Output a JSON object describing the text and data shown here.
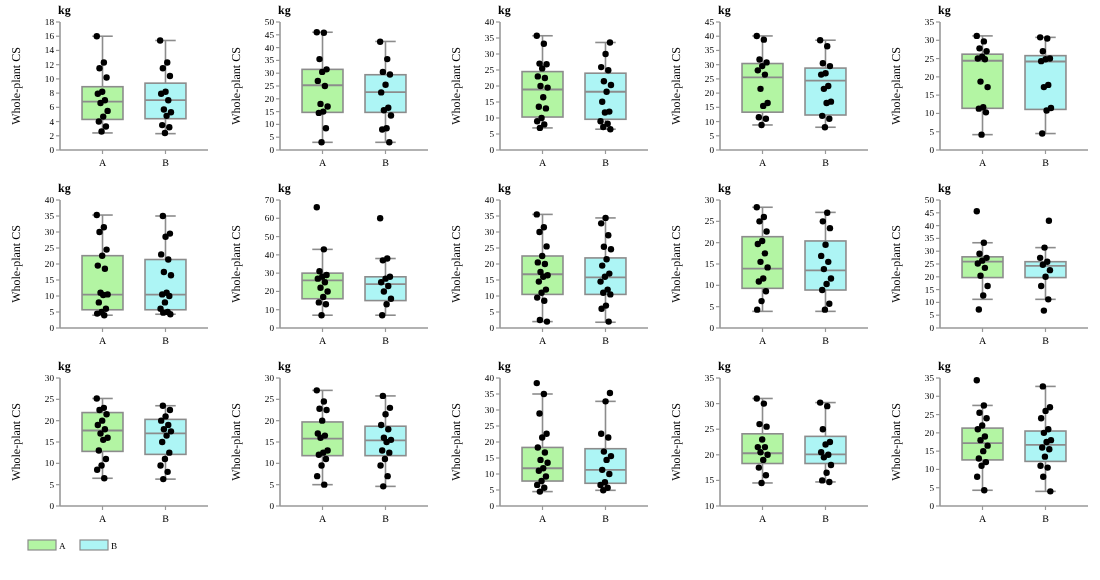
{
  "chart_data": [
    {
      "type": "box",
      "ylabel": "Whole-plant CS",
      "annotations": [
        "kg"
      ],
      "categories": [
        "A",
        "B"
      ],
      "ylim": [
        0,
        18
      ],
      "yticks": [
        0,
        2,
        4,
        6,
        8,
        10,
        12,
        14,
        16,
        18
      ],
      "marker": "circle",
      "series": [
        {
          "type": "box",
          "color": "#b3f5a3",
          "boxes": [
            {
              "low": 2.4,
              "q1": 4.3,
              "median": 6.8,
              "q3": 8.9,
              "high": 16
            },
            null
          ]
        },
        {
          "type": "box",
          "color": "#adf5f5",
          "boxes": [
            null,
            {
              "low": 2.3,
              "q1": 4.4,
              "median": 7,
              "q3": 9.4,
              "high": 15.4
            }
          ]
        },
        {
          "type": "scatter",
          "color": "#000000",
          "x": [
            "A",
            "A",
            "A",
            "A",
            "A",
            "A",
            "A",
            "A",
            "A",
            "A",
            "A",
            "A",
            "A",
            "B",
            "B",
            "B",
            "B",
            "B",
            "B",
            "B",
            "B",
            "B",
            "B",
            "B",
            "B",
            "B"
          ],
          "values": [
            16,
            12.3,
            11.5,
            10.2,
            8.2,
            7.9,
            7,
            6.6,
            5.5,
            4.7,
            4,
            3.3,
            2.6,
            15.4,
            12.3,
            11.5,
            10.4,
            8.2,
            7.9,
            7,
            5.7,
            5.3,
            4.8,
            3.5,
            3.2,
            2.4
          ]
        }
      ]
    },
    {
      "type": "box",
      "ylabel": "Whole-plant CS",
      "annotations": [
        "kg"
      ],
      "categories": [
        "A",
        "B"
      ],
      "ylim": [
        0,
        50
      ],
      "yticks": [
        0,
        5,
        10,
        15,
        20,
        25,
        30,
        35,
        40,
        45,
        50
      ],
      "marker": "circle",
      "series": [
        {
          "type": "box",
          "color": "#b3f5a3",
          "boxes": [
            {
              "low": 3,
              "q1": 14.7,
              "median": 25.3,
              "q3": 31.5,
              "high": 46
            },
            null
          ]
        },
        {
          "type": "box",
          "color": "#adf5f5",
          "boxes": [
            null,
            {
              "low": 3,
              "q1": 14.7,
              "median": 22.6,
              "q3": 29.4,
              "high": 42.4
            }
          ]
        },
        {
          "type": "scatter",
          "color": "#000000",
          "x": [
            "A",
            "A",
            "A",
            "A",
            "A",
            "A",
            "A",
            "A",
            "A",
            "A",
            "A",
            "A",
            "A",
            "B",
            "B",
            "B",
            "B",
            "B",
            "B",
            "B",
            "B",
            "B",
            "B",
            "B",
            "B"
          ],
          "values": [
            46,
            45.8,
            35.5,
            31.5,
            30.5,
            27,
            25,
            18,
            17,
            15,
            14.5,
            8.5,
            3,
            42.3,
            35.5,
            30.5,
            29.5,
            25.5,
            22.5,
            16.5,
            15.5,
            13.5,
            8.5,
            8,
            3
          ]
        }
      ]
    },
    {
      "type": "box",
      "ylabel": "Whole-plant CS",
      "annotations": [
        "kg"
      ],
      "categories": [
        "A",
        "B"
      ],
      "ylim": [
        0,
        40
      ],
      "yticks": [
        0,
        5,
        10,
        15,
        20,
        25,
        30,
        35,
        40
      ],
      "marker": "circle",
      "series": [
        {
          "type": "box",
          "color": "#b3f5a3",
          "boxes": [
            {
              "low": 6.9,
              "q1": 10.3,
              "median": 18.9,
              "q3": 24.5,
              "high": 35.7
            },
            null
          ]
        },
        {
          "type": "box",
          "color": "#adf5f5",
          "boxes": [
            null,
            {
              "low": 6.5,
              "q1": 9.6,
              "median": 18.2,
              "q3": 24,
              "high": 33.6
            }
          ]
        },
        {
          "type": "scatter",
          "color": "#000000",
          "x": [
            "A",
            "A",
            "A",
            "A",
            "A",
            "A",
            "A",
            "A",
            "A",
            "A",
            "A",
            "A",
            "A",
            "A",
            "A",
            "A",
            "B",
            "B",
            "B",
            "B",
            "B",
            "B",
            "B",
            "B",
            "B",
            "B",
            "B",
            "B",
            "B",
            "B"
          ],
          "values": [
            35.7,
            33.2,
            27,
            26.8,
            25.5,
            23,
            22.5,
            20,
            19.5,
            16.5,
            13.5,
            13,
            10,
            9,
            8,
            6.9,
            33.6,
            30,
            25.9,
            24.9,
            21.5,
            20.3,
            18.2,
            15.1,
            12,
            11.7,
            9,
            8.2,
            7.2,
            6.5
          ]
        }
      ]
    },
    {
      "type": "box",
      "ylabel": "Whole-plant CS",
      "annotations": [
        "kg"
      ],
      "categories": [
        "A",
        "B"
      ],
      "ylim": [
        0,
        45
      ],
      "yticks": [
        0,
        5,
        10,
        15,
        20,
        25,
        30,
        35,
        40,
        45
      ],
      "marker": "circle",
      "series": [
        {
          "type": "box",
          "color": "#b3f5a3",
          "boxes": [
            {
              "low": 8.8,
              "q1": 13.3,
              "median": 25.5,
              "q3": 30.4,
              "high": 40.1
            },
            null
          ]
        },
        {
          "type": "box",
          "color": "#adf5f5",
          "boxes": [
            null,
            {
              "low": 8,
              "q1": 12.3,
              "median": 24.4,
              "q3": 28.8,
              "high": 38.6
            }
          ]
        },
        {
          "type": "scatter",
          "color": "#000000",
          "x": [
            "A",
            "A",
            "A",
            "A",
            "A",
            "A",
            "A",
            "A",
            "A",
            "A",
            "A",
            "A",
            "A",
            "B",
            "B",
            "B",
            "B",
            "B",
            "B",
            "B",
            "B",
            "B",
            "B",
            "B",
            "B",
            "B"
          ],
          "values": [
            40.1,
            38.8,
            31.8,
            30.8,
            29.5,
            28,
            26.5,
            21.5,
            16.5,
            15.5,
            11.5,
            11,
            8.8,
            38.6,
            36.5,
            30.5,
            29.5,
            27,
            26.5,
            22.5,
            21.5,
            17,
            16.5,
            12,
            11,
            8
          ]
        }
      ]
    },
    {
      "type": "box",
      "ylabel": "Whole-plant CS",
      "annotations": [
        "kg"
      ],
      "categories": [
        "A",
        "B"
      ],
      "ylim": [
        0,
        35
      ],
      "yticks": [
        0,
        5,
        10,
        15,
        20,
        25,
        30,
        35
      ],
      "marker": "circle",
      "series": [
        {
          "type": "box",
          "color": "#b3f5a3",
          "boxes": [
            {
              "low": 4.2,
              "q1": 11.4,
              "median": 24.4,
              "q3": 26.2,
              "high": 31.2
            },
            null
          ]
        },
        {
          "type": "box",
          "color": "#adf5f5",
          "boxes": [
            null,
            {
              "low": 4.5,
              "q1": 11.1,
              "median": 24.2,
              "q3": 25.8,
              "high": 30.8
            }
          ]
        },
        {
          "type": "scatter",
          "color": "#000000",
          "x": [
            "A",
            "A",
            "A",
            "A",
            "A",
            "A",
            "A",
            "A",
            "A",
            "A",
            "A",
            "A",
            "A",
            "B",
            "B",
            "B",
            "B",
            "B",
            "B",
            "B",
            "B",
            "B",
            "B",
            "B"
          ],
          "values": [
            31.2,
            29.7,
            27.8,
            27,
            25.5,
            25,
            24.8,
            18.7,
            17.2,
            11.7,
            11.3,
            10.3,
            4.2,
            30.8,
            30.5,
            27,
            25,
            24.8,
            24.3,
            17.8,
            17.2,
            11.5,
            10.8,
            4.5
          ]
        }
      ]
    },
    {
      "type": "box",
      "ylabel": "Whole-plant CS",
      "annotations": [
        "kg"
      ],
      "categories": [
        "A",
        "B"
      ],
      "ylim": [
        0,
        40
      ],
      "yticks": [
        0,
        5,
        10,
        15,
        20,
        25,
        30,
        35,
        40
      ],
      "marker": "circle",
      "series": [
        {
          "type": "box",
          "color": "#b3f5a3",
          "boxes": [
            {
              "low": 4,
              "q1": 5.7,
              "median": 10.4,
              "q3": 22.6,
              "high": 35.3
            },
            null
          ]
        },
        {
          "type": "box",
          "color": "#adf5f5",
          "boxes": [
            null,
            {
              "low": 4.3,
              "q1": 5.7,
              "median": 10.4,
              "q3": 21.4,
              "high": 35
            }
          ]
        },
        {
          "type": "scatter",
          "color": "#000000",
          "x": [
            "A",
            "A",
            "A",
            "A",
            "A",
            "A",
            "A",
            "A",
            "A",
            "A",
            "A",
            "A",
            "A",
            "A",
            "A",
            "B",
            "B",
            "B",
            "B",
            "B",
            "B",
            "B",
            "B",
            "B",
            "B",
            "B",
            "B",
            "B",
            "B",
            "B"
          ],
          "values": [
            35.3,
            31.5,
            30,
            24.5,
            22.6,
            19.5,
            18.5,
            11,
            10.5,
            10.3,
            8,
            6,
            5,
            4.5,
            4,
            35,
            29.5,
            28.5,
            23,
            21.4,
            17.5,
            16.5,
            11,
            10.5,
            10,
            8,
            6,
            5,
            4.8,
            4.3
          ]
        }
      ]
    },
    {
      "type": "box",
      "ylabel": "Whole-plant CS",
      "annotations": [
        "kg"
      ],
      "categories": [
        "A",
        "B"
      ],
      "ylim": [
        0,
        70
      ],
      "yticks": [
        0,
        10,
        20,
        30,
        40,
        50,
        60,
        70
      ],
      "marker": "circle",
      "series": [
        {
          "type": "box",
          "color": "#b3f5a3",
          "boxes": [
            {
              "low": 7,
              "q1": 16,
              "median": 26,
              "q3": 30,
              "high": 43
            },
            null
          ]
        },
        {
          "type": "box",
          "color": "#adf5f5",
          "boxes": [
            null,
            {
              "low": 7,
              "q1": 15,
              "median": 24,
              "q3": 28,
              "high": 38
            }
          ]
        },
        {
          "type": "scatter",
          "color": "#000000",
          "x": [
            "A",
            "A",
            "A",
            "A",
            "A",
            "A",
            "A",
            "A",
            "A",
            "A",
            "A",
            "A",
            "A",
            "B",
            "B",
            "B",
            "B",
            "B",
            "B",
            "B",
            "B",
            "B",
            "B",
            "B"
          ],
          "values": [
            66,
            43,
            31,
            29,
            28,
            27,
            25,
            22,
            20,
            17,
            14,
            13,
            7,
            60,
            38,
            37,
            28,
            27,
            25,
            23,
            20,
            16,
            13,
            7
          ]
        }
      ]
    },
    {
      "type": "box",
      "ylabel": "Whole-plant CS",
      "annotations": [
        "kg"
      ],
      "categories": [
        "A",
        "B"
      ],
      "ylim": [
        0,
        40
      ],
      "yticks": [
        0,
        5,
        10,
        15,
        20,
        25,
        30,
        35,
        40
      ],
      "marker": "circle",
      "series": [
        {
          "type": "box",
          "color": "#b3f5a3",
          "boxes": [
            {
              "low": 2,
              "q1": 10.5,
              "median": 16.8,
              "q3": 22.5,
              "high": 35.5
            },
            null
          ]
        },
        {
          "type": "box",
          "color": "#adf5f5",
          "boxes": [
            null,
            {
              "low": 1.8,
              "q1": 10.5,
              "median": 15.8,
              "q3": 21.9,
              "high": 34.4
            }
          ]
        },
        {
          "type": "scatter",
          "color": "#000000",
          "x": [
            "A",
            "A",
            "A",
            "A",
            "A",
            "A",
            "A",
            "A",
            "A",
            "A",
            "A",
            "A",
            "A",
            "A",
            "A",
            "A",
            "A",
            "B",
            "B",
            "B",
            "B",
            "B",
            "B",
            "B",
            "B",
            "B",
            "B",
            "B",
            "B",
            "B",
            "B",
            "B",
            "B"
          ],
          "values": [
            35.5,
            31.5,
            30,
            25.5,
            22.5,
            20.5,
            20,
            17.5,
            16.5,
            16,
            14.5,
            12,
            11,
            9.5,
            8.5,
            2.5,
            2,
            34.4,
            32.7,
            29,
            25.4,
            24.6,
            21.5,
            19.5,
            17,
            16,
            14.5,
            12,
            11,
            10.5,
            7,
            6,
            2
          ]
        }
      ]
    },
    {
      "type": "box",
      "ylabel": "Whole-plant CS",
      "annotations": [
        "kg"
      ],
      "categories": [
        "A",
        "B"
      ],
      "ylim": [
        0,
        30
      ],
      "yticks": [
        0,
        5,
        10,
        15,
        20,
        25,
        30
      ],
      "marker": "circle",
      "series": [
        {
          "type": "box",
          "color": "#b3f5a3",
          "boxes": [
            {
              "low": 3.9,
              "q1": 9.3,
              "median": 13.9,
              "q3": 21.4,
              "high": 28.3
            },
            null
          ]
        },
        {
          "type": "box",
          "color": "#adf5f5",
          "boxes": [
            null,
            {
              "low": 3.9,
              "q1": 8.9,
              "median": 13.5,
              "q3": 20.4,
              "high": 27.1
            }
          ]
        },
        {
          "type": "scatter",
          "color": "#000000",
          "x": [
            "A",
            "A",
            "A",
            "A",
            "A",
            "A",
            "A",
            "A",
            "A",
            "A",
            "A",
            "A",
            "A",
            "A",
            "B",
            "B",
            "B",
            "B",
            "B",
            "B",
            "B",
            "B",
            "B",
            "B",
            "B",
            "B"
          ],
          "values": [
            28.3,
            26,
            25,
            22.6,
            20.4,
            19.7,
            17.5,
            15.5,
            14.2,
            11.6,
            10.9,
            8.6,
            6.3,
            4.3,
            27,
            25,
            23.4,
            19.5,
            16.9,
            15.5,
            13.8,
            11.6,
            10.3,
            8.9,
            5.7,
            4.3
          ]
        }
      ]
    },
    {
      "type": "box",
      "ylabel": "Whole-plant CS",
      "annotations": [
        "kg"
      ],
      "categories": [
        "A",
        "B"
      ],
      "ylim": [
        0,
        50
      ],
      "yticks": [
        0,
        5,
        10,
        15,
        20,
        25,
        30,
        35,
        40,
        45,
        50
      ],
      "marker": "circle",
      "series": [
        {
          "type": "box",
          "color": "#b3f5a3",
          "boxes": [
            {
              "low": 11.2,
              "q1": 19.7,
              "median": 25.9,
              "q3": 27.8,
              "high": 33.3
            },
            null
          ]
        },
        {
          "type": "box",
          "color": "#adf5f5",
          "boxes": [
            null,
            {
              "low": 11.2,
              "q1": 19.7,
              "median": 24.3,
              "q3": 25.9,
              "high": 31.4
            }
          ]
        },
        {
          "type": "scatter",
          "color": "#000000",
          "x": [
            "A",
            "A",
            "A",
            "A",
            "A",
            "A",
            "A",
            "A",
            "A",
            "A",
            "A",
            "B",
            "B",
            "B",
            "B",
            "B",
            "B",
            "B",
            "B",
            "B",
            "B"
          ],
          "values": [
            45.6,
            33.3,
            29,
            27.4,
            26.3,
            25.2,
            23.5,
            20.4,
            16.4,
            12.7,
            7.2,
            41.9,
            31.4,
            27.4,
            25.9,
            24.7,
            22.6,
            20,
            16.4,
            11.2,
            6.8
          ]
        }
      ]
    },
    {
      "type": "box",
      "ylabel": "Whole-plant CS",
      "annotations": [
        "kg"
      ],
      "categories": [
        "A",
        "B"
      ],
      "ylim": [
        0,
        30
      ],
      "yticks": [
        0,
        5,
        10,
        15,
        20,
        25,
        30
      ],
      "marker": "circle",
      "legend": "bottom left",
      "series": [
        {
          "type": "box",
          "name": "A",
          "color": "#b3f5a3",
          "boxes": [
            {
              "low": 6.5,
              "q1": 12.8,
              "median": 17.7,
              "q3": 21.9,
              "high": 25.2
            },
            null
          ]
        },
        {
          "type": "box",
          "name": "B",
          "color": "#adf5f5",
          "boxes": [
            null,
            {
              "low": 6.3,
              "q1": 12.1,
              "median": 17,
              "q3": 20.3,
              "high": 23.5
            }
          ]
        },
        {
          "type": "scatter",
          "color": "#000000",
          "x": [
            "A",
            "A",
            "A",
            "A",
            "A",
            "A",
            "A",
            "A",
            "A",
            "A",
            "A",
            "A",
            "A",
            "A",
            "A",
            "B",
            "B",
            "B",
            "B",
            "B",
            "B",
            "B",
            "B",
            "B",
            "B",
            "B",
            "B",
            "B",
            "B"
          ],
          "values": [
            25.2,
            23,
            22.5,
            21.5,
            20,
            19,
            18,
            17,
            16,
            15.5,
            13,
            11,
            9.5,
            8.5,
            6.5,
            23.5,
            22.5,
            21,
            20,
            19,
            18,
            17.5,
            16.5,
            15,
            12.5,
            11,
            9.5,
            8,
            6.3
          ]
        }
      ]
    },
    {
      "type": "box",
      "ylabel": "Whole-plant CS",
      "annotations": [
        "kg"
      ],
      "categories": [
        "A",
        "B"
      ],
      "ylim": [
        0,
        30
      ],
      "yticks": [
        0,
        5,
        10,
        15,
        20,
        25,
        30
      ],
      "marker": "circle",
      "series": [
        {
          "type": "box",
          "color": "#b3f5a3",
          "boxes": [
            {
              "low": 5,
              "q1": 11.8,
              "median": 15.8,
              "q3": 19.7,
              "high": 27.1
            },
            null
          ]
        },
        {
          "type": "box",
          "color": "#adf5f5",
          "boxes": [
            null,
            {
              "low": 4.6,
              "q1": 11.8,
              "median": 15.4,
              "q3": 18.7,
              "high": 25.8
            }
          ]
        },
        {
          "type": "scatter",
          "color": "#000000",
          "x": [
            "A",
            "A",
            "A",
            "A",
            "A",
            "A",
            "A",
            "A",
            "A",
            "A",
            "A",
            "A",
            "A",
            "A",
            "A",
            "B",
            "B",
            "B",
            "B",
            "B",
            "B",
            "B",
            "B",
            "B",
            "B",
            "B",
            "B",
            "B",
            "B"
          ],
          "values": [
            27.1,
            24.5,
            22.8,
            22.5,
            20,
            17,
            16.5,
            16,
            13,
            12.5,
            12,
            11,
            9.5,
            7,
            5,
            25.8,
            23,
            21.5,
            19,
            18,
            16,
            15.5,
            15,
            13,
            12.5,
            11,
            9.5,
            7,
            4.6
          ]
        }
      ]
    },
    {
      "type": "box",
      "ylabel": "Whole-plant CS",
      "annotations": [
        "kg"
      ],
      "categories": [
        "A",
        "B"
      ],
      "ylim": [
        0,
        40
      ],
      "yticks": [
        0,
        5,
        10,
        15,
        20,
        25,
        30,
        35,
        40
      ],
      "marker": "circle",
      "series": [
        {
          "type": "box",
          "color": "#b3f5a3",
          "boxes": [
            {
              "low": 4.5,
              "q1": 7.8,
              "median": 11.8,
              "q3": 18.3,
              "high": 35
            },
            null
          ]
        },
        {
          "type": "box",
          "color": "#adf5f5",
          "boxes": [
            null,
            {
              "low": 4.9,
              "q1": 7.1,
              "median": 11.3,
              "q3": 17.9,
              "high": 32.7
            }
          ]
        },
        {
          "type": "scatter",
          "color": "#000000",
          "x": [
            "A",
            "A",
            "A",
            "A",
            "A",
            "A",
            "A",
            "A",
            "A",
            "A",
            "A",
            "A",
            "A",
            "A",
            "A",
            "A",
            "B",
            "B",
            "B",
            "B",
            "B",
            "B",
            "B",
            "B",
            "B",
            "B",
            "B",
            "B",
            "B"
          ],
          "values": [
            38.4,
            35,
            28.9,
            22.6,
            21.4,
            18.3,
            16.7,
            14.4,
            13.5,
            11.8,
            11,
            9.2,
            7.8,
            6.6,
            5.7,
            4.5,
            35.3,
            32.7,
            22.6,
            21.4,
            17,
            15.6,
            14.4,
            11.3,
            10,
            7.4,
            6.6,
            5.7,
            4.9
          ]
        }
      ]
    },
    {
      "type": "box",
      "ylabel": "Whole-plant CS",
      "annotations": [
        "kg"
      ],
      "categories": [
        "A",
        "B"
      ],
      "ylim": [
        10,
        35
      ],
      "yticks": [
        10,
        15,
        20,
        25,
        30,
        35
      ],
      "marker": "circle",
      "series": [
        {
          "type": "box",
          "color": "#b3f5a3",
          "boxes": [
            {
              "low": 14.5,
              "q1": 18.3,
              "median": 20.3,
              "q3": 24.1,
              "high": 31
            },
            null
          ]
        },
        {
          "type": "box",
          "color": "#adf5f5",
          "boxes": [
            null,
            {
              "low": 14.7,
              "q1": 18.3,
              "median": 20.1,
              "q3": 23.6,
              "high": 30.2
            }
          ]
        },
        {
          "type": "scatter",
          "color": "#000000",
          "x": [
            "A",
            "A",
            "A",
            "A",
            "A",
            "A",
            "A",
            "A",
            "A",
            "A",
            "A",
            "A",
            "A",
            "B",
            "B",
            "B",
            "B",
            "B",
            "B",
            "B",
            "B",
            "B",
            "B",
            "B",
            "B"
          ],
          "values": [
            31,
            30,
            26,
            25.5,
            23,
            21.5,
            21.5,
            20.5,
            20,
            19,
            17.5,
            16,
            14.5,
            30.2,
            29.5,
            25,
            22.5,
            22,
            20.5,
            20,
            19.5,
            18,
            16.5,
            15,
            14.7
          ]
        }
      ]
    },
    {
      "type": "box",
      "ylabel": "Whole-plant CS",
      "annotations": [
        "kg"
      ],
      "categories": [
        "A",
        "B"
      ],
      "ylim": [
        0,
        35
      ],
      "yticks": [
        0,
        5,
        10,
        15,
        20,
        25,
        30,
        35
      ],
      "marker": "circle",
      "series": [
        {
          "type": "box",
          "color": "#b3f5a3",
          "boxes": [
            {
              "low": 4.3,
              "q1": 12.6,
              "median": 17.2,
              "q3": 21.3,
              "high": 27.5
            },
            null
          ]
        },
        {
          "type": "box",
          "color": "#adf5f5",
          "boxes": [
            null,
            {
              "low": 4,
              "q1": 12.2,
              "median": 16.7,
              "q3": 20.5,
              "high": 32.7
            }
          ]
        },
        {
          "type": "scatter",
          "color": "#000000",
          "x": [
            "A",
            "A",
            "A",
            "A",
            "A",
            "A",
            "A",
            "A",
            "A",
            "A",
            "A",
            "A",
            "A",
            "A",
            "A",
            "B",
            "B",
            "B",
            "B",
            "B",
            "B",
            "B",
            "B",
            "B",
            "B",
            "B",
            "B",
            "B",
            "B",
            "B"
          ],
          "values": [
            34.4,
            27.5,
            25.5,
            24,
            22,
            21,
            19,
            18,
            16.5,
            15,
            13,
            12,
            11,
            8,
            4.3,
            32.7,
            27,
            26,
            24,
            21,
            20,
            18,
            17.5,
            16,
            15.5,
            13.5,
            11,
            10.5,
            8,
            4
          ]
        }
      ]
    }
  ]
}
